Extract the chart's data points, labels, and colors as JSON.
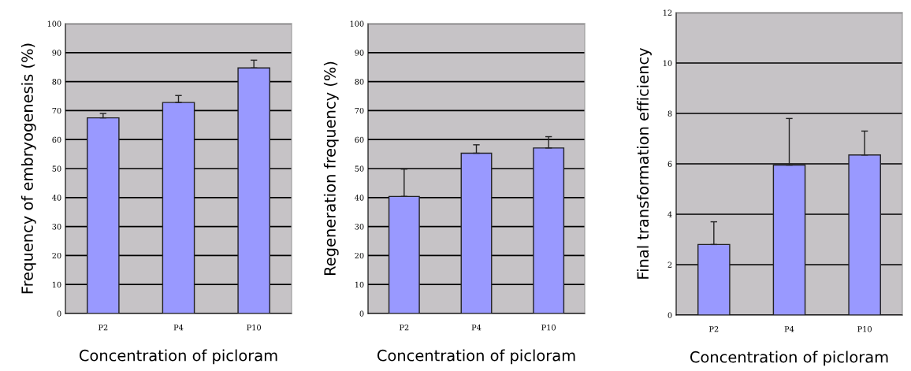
{
  "chart_data": [
    {
      "type": "bar",
      "categories": [
        "P2",
        "P4",
        "P10"
      ],
      "values": [
        67.5,
        72.8,
        84.7
      ],
      "errors": [
        [
          67.5,
          69
        ],
        [
          72.8,
          75.2
        ],
        [
          84.7,
          87.4
        ]
      ],
      "color": "#9999ff",
      "xlabel": "Concentration of picloram",
      "ylabel": "Frequency of embryogenesis (%)",
      "ylim": [
        0,
        100
      ],
      "yticks": [
        0,
        10,
        20,
        30,
        40,
        50,
        60,
        70,
        80,
        90,
        100
      ],
      "grid": "y"
    },
    {
      "type": "bar",
      "categories": [
        "P2",
        "P4",
        "P10"
      ],
      "values": [
        40.4,
        55.3,
        57.1
      ],
      "errors": [
        [
          40.4,
          49.8
        ],
        [
          55.3,
          58.2
        ],
        [
          57.1,
          61
        ]
      ],
      "color": "#9999ff",
      "xlabel": "Concentration of picloram",
      "ylabel": "Regeneration frequency (%)",
      "ylim": [
        0,
        100
      ],
      "yticks": [
        0,
        10,
        20,
        30,
        40,
        50,
        60,
        70,
        80,
        90,
        100
      ],
      "grid": "y"
    },
    {
      "type": "bar",
      "categories": [
        "P2",
        "P4",
        "P10"
      ],
      "values": [
        2.8,
        5.95,
        6.35
      ],
      "errors": [
        [
          2.8,
          3.7
        ],
        [
          5.95,
          7.8
        ],
        [
          6.35,
          7.3
        ]
      ],
      "color": "#9999ff",
      "xlabel": "Concentration of picloram",
      "ylabel": "Final transformation efficiency",
      "ylim": [
        0,
        12
      ],
      "yticks": [
        0,
        2,
        4,
        6,
        8,
        10,
        12
      ],
      "grid": "y"
    }
  ]
}
